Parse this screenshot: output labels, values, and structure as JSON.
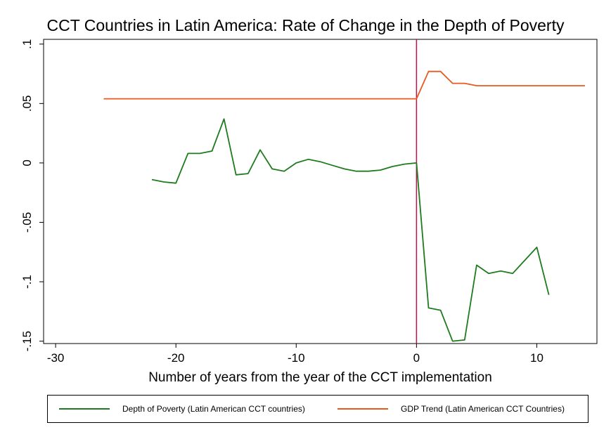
{
  "chart_data": {
    "type": "line",
    "title": "CCT Countries in Latin America: Rate of Change in the Depth of Poverty",
    "xlabel": "Number of years from the year of the CCT implementation",
    "ylabel": "",
    "xlim": [
      -31,
      15
    ],
    "ylim": [
      -0.152,
      0.104
    ],
    "x_ticks": [
      -30,
      -20,
      -10,
      0,
      10
    ],
    "x_tick_labels": [
      "-30",
      "-20",
      "-10",
      "0",
      "10"
    ],
    "y_ticks": [
      0.1,
      0.05,
      0,
      -0.05,
      -0.1,
      -0.15
    ],
    "y_tick_labels": [
      ".1",
      ".05",
      "0",
      "-.05",
      "-.1",
      "-.15"
    ],
    "grid": false,
    "reference_line": {
      "x": 0,
      "color": "#c0134f"
    },
    "legend_position": "bottom",
    "series": [
      {
        "name": "Depth of Poverty (Latin American CCT countries)",
        "color": "#1e7b1e",
        "x": [
          -22,
          -21,
          -20,
          -19,
          -18,
          -17,
          -16,
          -15,
          -14,
          -13,
          -12,
          -11,
          -10,
          -9,
          -8,
          -7,
          -6,
          -5,
          -4,
          -3,
          -2,
          -1,
          0,
          1,
          2,
          3,
          4,
          5,
          6,
          7,
          8,
          9,
          10,
          11
        ],
        "y": [
          -0.014,
          -0.016,
          -0.017,
          0.008,
          0.008,
          0.01,
          0.037,
          -0.01,
          -0.009,
          0.011,
          -0.005,
          -0.007,
          0.0,
          0.003,
          0.001,
          -0.002,
          -0.005,
          -0.007,
          -0.007,
          -0.006,
          -0.003,
          -0.001,
          0.0,
          -0.122,
          -0.124,
          -0.15,
          -0.149,
          -0.086,
          -0.093,
          -0.091,
          -0.093,
          -0.082,
          -0.071,
          -0.111
        ]
      },
      {
        "name": "GDP Trend (Latin American CCT Countries)",
        "color": "#e8591e",
        "x": [
          -26,
          -25,
          -24,
          -23,
          -22,
          -21,
          -20,
          -19,
          -18,
          -17,
          -16,
          -15,
          -14,
          -13,
          -12,
          -11,
          -10,
          -9,
          -8,
          -7,
          -6,
          -5,
          -4,
          -3,
          -2,
          -1,
          0,
          1,
          2,
          3,
          4,
          5,
          6,
          7,
          8,
          9,
          10,
          11,
          12,
          13,
          14
        ],
        "y": [
          0.054,
          0.054,
          0.054,
          0.054,
          0.054,
          0.054,
          0.054,
          0.054,
          0.054,
          0.054,
          0.054,
          0.054,
          0.054,
          0.054,
          0.054,
          0.054,
          0.054,
          0.054,
          0.054,
          0.054,
          0.054,
          0.054,
          0.054,
          0.054,
          0.054,
          0.054,
          0.054,
          0.077,
          0.077,
          0.067,
          0.067,
          0.065,
          0.065,
          0.065,
          0.065,
          0.065,
          0.065,
          0.065,
          0.065,
          0.065,
          0.065
        ]
      }
    ]
  }
}
